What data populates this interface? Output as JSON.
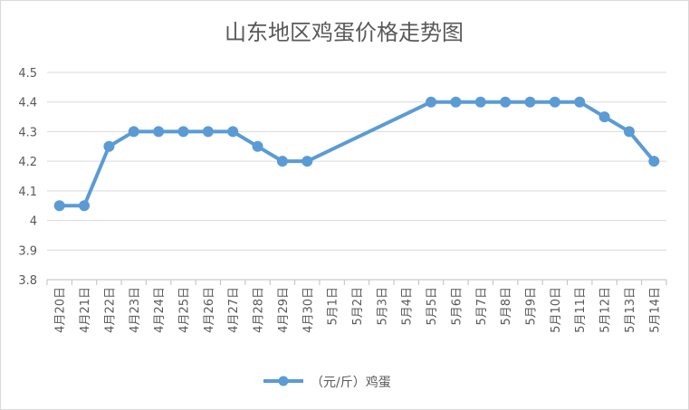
{
  "chart_data": {
    "type": "line",
    "title": "山东地区鸡蛋价格走势图",
    "xlabel": "",
    "ylabel": "",
    "ylim": [
      3.8,
      4.5
    ],
    "yticks": [
      "3.8",
      "3.9",
      "4",
      "4.1",
      "4.2",
      "4.3",
      "4.4",
      "4.5"
    ],
    "grid": true,
    "legend_position": "bottom",
    "categories": [
      "4月20日",
      "4月21日",
      "4月22日",
      "4月23日",
      "4月24日",
      "4月25日",
      "4月26日",
      "4月27日",
      "4月28日",
      "4月29日",
      "4月30日",
      "5月1日",
      "5月2日",
      "5月3日",
      "5月4日",
      "5月5日",
      "5月6日",
      "5月7日",
      "5月8日",
      "5月9日",
      "5月10日",
      "5月11日",
      "5月12日",
      "5月13日",
      "5月14日"
    ],
    "series": [
      {
        "name": "（元/斤）鸡蛋",
        "color": "#5b9bd5",
        "values": [
          4.05,
          4.05,
          4.25,
          4.3,
          4.3,
          4.3,
          4.3,
          4.3,
          4.25,
          4.2,
          4.2,
          null,
          null,
          null,
          null,
          4.4,
          4.4,
          4.4,
          4.4,
          4.4,
          4.4,
          4.4,
          4.35,
          4.3,
          4.2
        ]
      }
    ]
  }
}
